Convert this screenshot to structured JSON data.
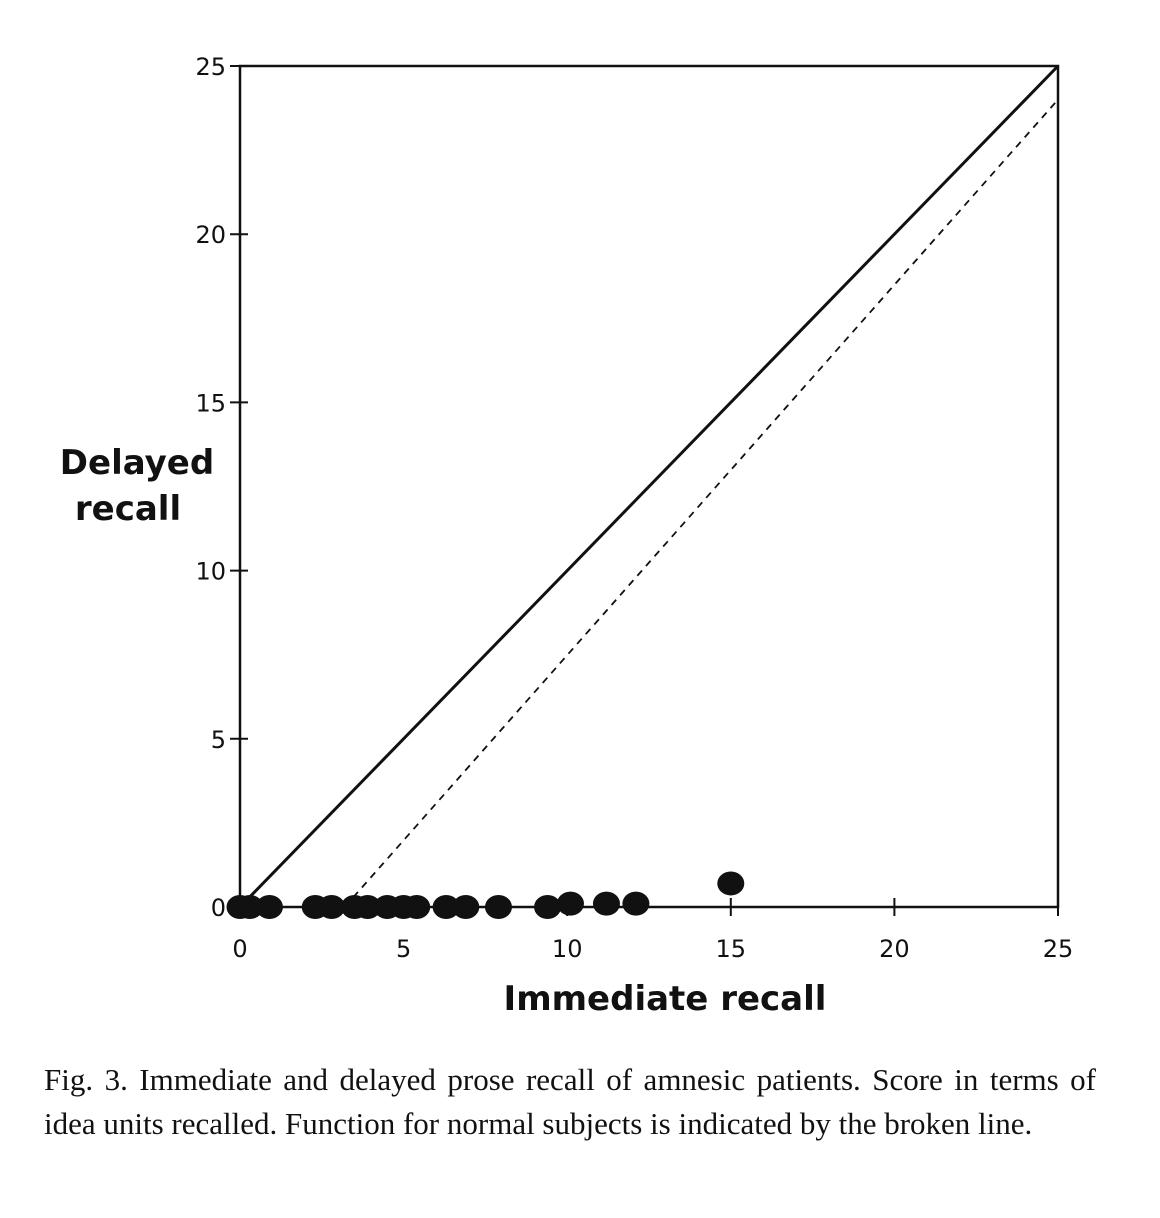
{
  "chart_data": {
    "type": "scatter",
    "title": "",
    "xlabel": "Immediate recall",
    "ylabel_lines": [
      "Delayed",
      "recall"
    ],
    "xlim": [
      0,
      25
    ],
    "ylim": [
      0,
      25
    ],
    "xticks": [
      0,
      5,
      10,
      15,
      20,
      25
    ],
    "yticks": [
      0,
      5,
      10,
      15,
      20,
      25
    ],
    "grid": false,
    "series": [
      {
        "values": [
          {
            "x": 0.0,
            "y": 0
          },
          {
            "x": 0.3,
            "y": 0
          },
          {
            "x": 0.9,
            "y": 0
          },
          {
            "x": 2.3,
            "y": 0
          },
          {
            "x": 2.8,
            "y": 0
          },
          {
            "x": 3.5,
            "y": 0
          },
          {
            "x": 3.9,
            "y": 0
          },
          {
            "x": 4.5,
            "y": 0
          },
          {
            "x": 5.0,
            "y": 0
          },
          {
            "x": 5.4,
            "y": 0
          },
          {
            "x": 6.3,
            "y": 0
          },
          {
            "x": 6.9,
            "y": 0
          },
          {
            "x": 7.9,
            "y": 0
          },
          {
            "x": 9.4,
            "y": 0
          },
          {
            "x": 10.1,
            "y": 0.1
          },
          {
            "x": 11.2,
            "y": 0.1
          },
          {
            "x": 12.1,
            "y": 0.1
          },
          {
            "x": 15.0,
            "y": 0.7
          }
        ]
      }
    ],
    "reference_lines": [
      {
        "style": "solid",
        "from": [
          0,
          0
        ],
        "to": [
          25,
          25
        ]
      },
      {
        "style": "dashed",
        "from": [
          3.2,
          0
        ],
        "to": [
          25,
          24
        ]
      }
    ]
  },
  "caption": "Fig. 3. Immediate and delayed prose recall of amnesic patients. Score in terms of idea units recalled. Function for normal subjects is indicated by the broken line."
}
